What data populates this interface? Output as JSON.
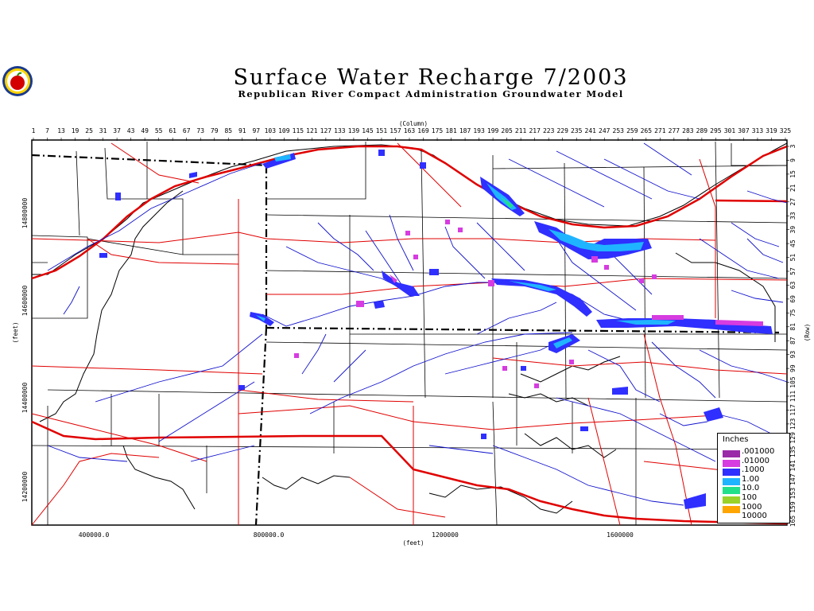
{
  "header": {
    "title": "Surface Water Recharge 7/2003",
    "subtitle": "Republican River Compact Administration Groundwater Model"
  },
  "logo": {
    "icon": "apple-seal-icon"
  },
  "axes": {
    "top_label": "(Column)",
    "bottom_label": "(feet)",
    "left_label": "(feet)",
    "right_label": "(Row)",
    "columns": [
      "1",
      "7",
      "13",
      "19",
      "25",
      "31",
      "37",
      "43",
      "49",
      "55",
      "61",
      "67",
      "73",
      "79",
      "85",
      "91",
      "97",
      "103",
      "109",
      "115",
      "121",
      "127",
      "133",
      "139",
      "145",
      "151",
      "157",
      "163",
      "169",
      "175",
      "181",
      "187",
      "193",
      "199",
      "205",
      "211",
      "217",
      "223",
      "229",
      "235",
      "241",
      "247",
      "253",
      "259",
      "265",
      "271",
      "277",
      "283",
      "289",
      "295",
      "301",
      "307",
      "313",
      "319",
      "325"
    ],
    "rows": [
      "3",
      "9",
      "15",
      "21",
      "27",
      "33",
      "39",
      "45",
      "51",
      "57",
      "63",
      "69",
      "75",
      "81",
      "87",
      "93",
      "99",
      "105",
      "111",
      "117",
      "123",
      "129",
      "135",
      "141",
      "147",
      "153",
      "159",
      "165"
    ],
    "x_coords": [
      "400000.0",
      "800000.0",
      "1200000",
      "1600000"
    ],
    "y_coords": [
      "14800000",
      "14600000",
      "14400000",
      "14200000"
    ]
  },
  "legend": {
    "title": "Inches",
    "items": [
      {
        "label": ".001000",
        "color": "#9a2aa8"
      },
      {
        "label": ".01000",
        "color": "#d63ce0"
      },
      {
        "label": ".1000",
        "color": "#2f2fff"
      },
      {
        "label": "1.00",
        "color": "#1fb4ff"
      },
      {
        "label": "10.0",
        "color": "#22e08a"
      },
      {
        "label": "100",
        "color": "#9ad22a"
      },
      {
        "label": "1000",
        "color": "#ffa500"
      },
      {
        "label": "10000",
        "color": "#ffffff"
      }
    ]
  },
  "colors": {
    "roads": "#e00000",
    "rivers": "#0000cc",
    "boundaries": "#000000"
  }
}
